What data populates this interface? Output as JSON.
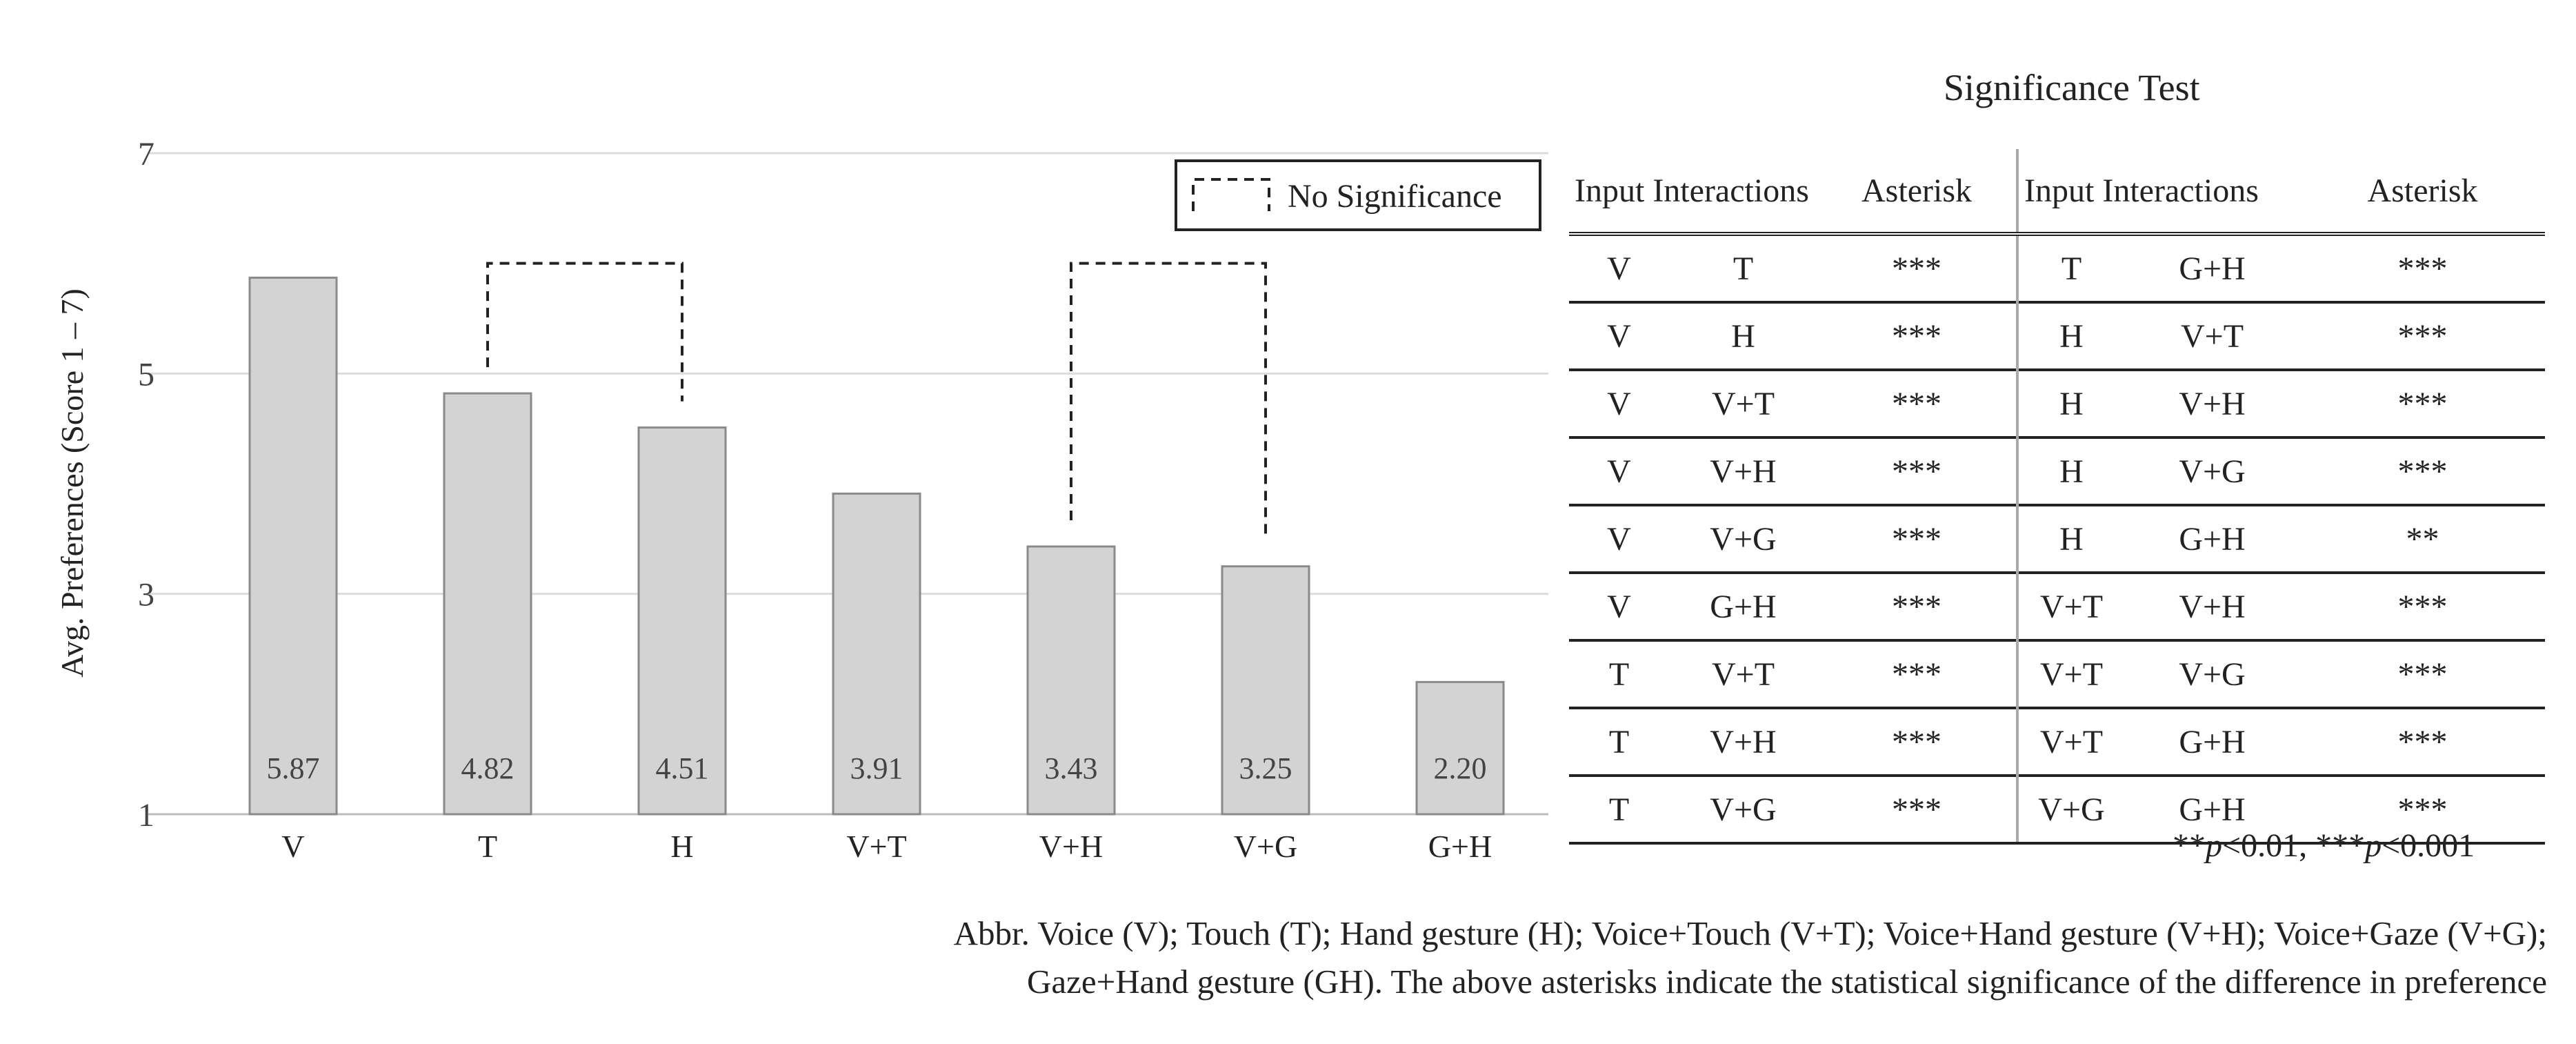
{
  "chart_data": {
    "type": "bar",
    "categories": [
      "V",
      "T",
      "H",
      "V+T",
      "V+H",
      "V+G",
      "G+H"
    ],
    "values": [
      5.87,
      4.82,
      4.51,
      3.91,
      3.43,
      3.25,
      2.2
    ],
    "value_labels": [
      "5.87",
      "4.82",
      "4.51",
      "3.91",
      "3.43",
      "3.25",
      "2.20"
    ],
    "ylabel": "Avg. Preferences (Score 1 – 7)",
    "ylim": [
      1,
      7
    ],
    "yticks": [
      "1",
      "3",
      "5",
      "7"
    ],
    "ytick_values": [
      1,
      3,
      5,
      7
    ],
    "grid": true,
    "bar_color": "#d3d3d3",
    "bar_edge": "#8a8a8a",
    "no_significance_pairs": [
      [
        "T",
        "H"
      ],
      [
        "V+H",
        "V+G"
      ]
    ],
    "no_significance_bracket_level": 6,
    "legend": {
      "label": "No Significance",
      "position": "top-right"
    }
  },
  "significance_test": {
    "title": "Significance Test",
    "headers": [
      "Input Interactions",
      "Asterisk",
      "Input Interactions",
      "Asterisk"
    ],
    "rows": [
      [
        "V",
        "T",
        "***",
        "T",
        "G+H",
        "***"
      ],
      [
        "V",
        "H",
        "***",
        "H",
        "V+T",
        "***"
      ],
      [
        "V",
        "V+T",
        "***",
        "H",
        "V+H",
        "***"
      ],
      [
        "V",
        "V+H",
        "***",
        "H",
        "V+G",
        "***"
      ],
      [
        "V",
        "V+G",
        "***",
        "H",
        "G+H",
        "**"
      ],
      [
        "V",
        "G+H",
        "***",
        "V+T",
        "V+H",
        "***"
      ],
      [
        "T",
        "V+T",
        "***",
        "V+T",
        "V+G",
        "***"
      ],
      [
        "T",
        "V+H",
        "***",
        "V+T",
        "G+H",
        "***"
      ],
      [
        "T",
        "V+G",
        "***",
        "V+G",
        "G+H",
        "***"
      ]
    ],
    "note": {
      "sym1": "**",
      "p1": "p",
      "rest1": "<0.01, ",
      "sym2": "***",
      "p2": "p",
      "rest2": "<0.001"
    }
  },
  "caption": {
    "line1": "Abbr. Voice (V); Touch (T); Hand gesture (H); Voice+Touch (V+T); Voice+Hand gesture (V+H); Voice+Gaze (V+G);",
    "line2": "Gaze+Hand gesture (GH). The above asterisks indicate the statistical significance of the difference in preference"
  }
}
